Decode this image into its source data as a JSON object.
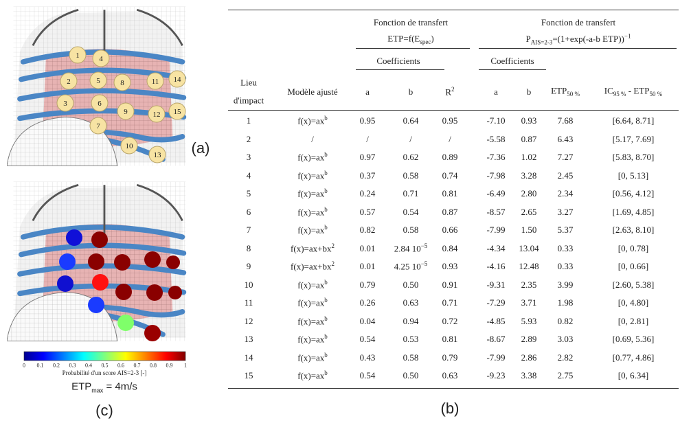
{
  "figure_a": {
    "label": "(a)",
    "markers": [
      "1",
      "4",
      "2",
      "5",
      "8",
      "11",
      "14",
      "3",
      "6",
      "9",
      "12",
      "15",
      "7",
      "10",
      "13"
    ]
  },
  "figure_c": {
    "label": "(c)",
    "colorbar": {
      "ticks": [
        "0",
        "0.1",
        "0.2",
        "0.3",
        "0.4",
        "0.5",
        "0.6",
        "0.7",
        "0.8",
        "0.9",
        "1"
      ],
      "caption": "Probabilité d'un score AIS=2-3 [-]"
    },
    "note": [
      {
        "text": "ETP"
      },
      {
        "sub": "max"
      },
      {
        "text": " = 4m/s"
      }
    ]
  },
  "table": {
    "label": "(b)",
    "group_1": {
      "title": "Fonction de transfert",
      "formula": [
        {
          "text": "ETP=f(E"
        },
        {
          "sub": "spec"
        },
        {
          "text": ")"
        }
      ],
      "subgroup": "Coefficients"
    },
    "group_2": {
      "title": "Fonction de transfert",
      "formula": [
        {
          "text": "P"
        },
        {
          "sub": "AIS=2-3"
        },
        {
          "text": "=(1+exp(-a-b ETP))"
        },
        {
          "sup": "−1"
        }
      ],
      "subgroup": "Coefficients"
    },
    "columns": [
      {
        "lines": [
          "Lieu",
          "d'impact"
        ]
      },
      "Modèle ajusté",
      "a",
      "b",
      [
        {
          "text": "R"
        },
        {
          "sup": "2"
        }
      ],
      "a",
      "b",
      [
        {
          "text": "ETP"
        },
        {
          "sub": "50 %"
        }
      ],
      [
        {
          "text": "IC"
        },
        {
          "sub": "95 %"
        },
        {
          "text": " - ETP"
        },
        {
          "sub": "50 %"
        }
      ]
    ],
    "rows": [
      [
        "1",
        [
          {
            "text": "f(x)=ax"
          },
          {
            "sup": "b"
          }
        ],
        "0.95",
        "0.64",
        "0.95",
        "-7.10",
        "0.93",
        "7.68",
        "[6.64, 8.71]"
      ],
      [
        "2",
        "/",
        "/",
        "/",
        "/",
        "-5.58",
        "0.87",
        "6.43",
        "[5.17, 7.69]"
      ],
      [
        "3",
        [
          {
            "text": "f(x)=ax"
          },
          {
            "sup": "b"
          }
        ],
        "0.97",
        "0.62",
        "0.89",
        "-7.36",
        "1.02",
        "7.27",
        "[5.83, 8.70]"
      ],
      [
        "4",
        [
          {
            "text": "f(x)=ax"
          },
          {
            "sup": "b"
          }
        ],
        "0.37",
        "0.58",
        "0.74",
        "-7.98",
        "3.28",
        "2.45",
        "[0, 5.13]"
      ],
      [
        "5",
        [
          {
            "text": "f(x)=ax"
          },
          {
            "sup": "b"
          }
        ],
        "0.24",
        "0.71",
        "0.81",
        "-6.49",
        "2.80",
        "2.34",
        "[0.56, 4.12]"
      ],
      [
        "6",
        [
          {
            "text": "f(x)=ax"
          },
          {
            "sup": "b"
          }
        ],
        "0.57",
        "0.54",
        "0.87",
        "-8.57",
        "2.65",
        "3.27",
        "[1.69, 4.85]"
      ],
      [
        "7",
        [
          {
            "text": "f(x)=ax"
          },
          {
            "sup": "b"
          }
        ],
        "0.82",
        "0.58",
        "0.66",
        "-7.99",
        "1.50",
        "5.37",
        "[2.63, 8.10]"
      ],
      [
        "8",
        [
          {
            "text": "f(x)=ax+bx"
          },
          {
            "sup": "2"
          }
        ],
        "0.01",
        [
          {
            "text": "2.84 10"
          },
          {
            "sup": "−5"
          }
        ],
        "0.84",
        "-4.34",
        "13.04",
        "0.33",
        "[0, 0.78]"
      ],
      [
        "9",
        [
          {
            "text": "f(x)=ax+bx"
          },
          {
            "sup": "2"
          }
        ],
        "0.01",
        [
          {
            "text": "4.25 10"
          },
          {
            "sup": "−5"
          }
        ],
        "0.93",
        "-4.16",
        "12.48",
        "0.33",
        "[0, 0.66]"
      ],
      [
        "10",
        [
          {
            "text": "f(x)=ax"
          },
          {
            "sup": "b"
          }
        ],
        "0.79",
        "0.50",
        "0.91",
        "-9.31",
        "2.35",
        "3.99",
        "[2.60, 5.38]"
      ],
      [
        "11",
        [
          {
            "text": "f(x)=ax"
          },
          {
            "sup": "b"
          }
        ],
        "0.26",
        "0.63",
        "0.71",
        "-7.29",
        "3.71",
        "1.98",
        "[0, 4.80]"
      ],
      [
        "12",
        [
          {
            "text": "f(x)=ax"
          },
          {
            "sup": "b"
          }
        ],
        "0.04",
        "0.94",
        "0.72",
        "-4.85",
        "5.93",
        "0.82",
        "[0, 2.81]"
      ],
      [
        "13",
        [
          {
            "text": "f(x)=ax"
          },
          {
            "sup": "b"
          }
        ],
        "0.54",
        "0.53",
        "0.81",
        "-8.67",
        "2.89",
        "3.03",
        "[0.69, 5.36]"
      ],
      [
        "14",
        [
          {
            "text": "f(x)=ax"
          },
          {
            "sup": "b"
          }
        ],
        "0.43",
        "0.58",
        "0.79",
        "-7.99",
        "2.86",
        "2.82",
        "[0.77, 4.86]"
      ],
      [
        "15",
        [
          {
            "text": "f(x)=ax"
          },
          {
            "sup": "b"
          }
        ],
        "0.54",
        "0.50",
        "0.63",
        "-9.23",
        "3.38",
        "2.75",
        "[0, 6.34]"
      ]
    ]
  }
}
